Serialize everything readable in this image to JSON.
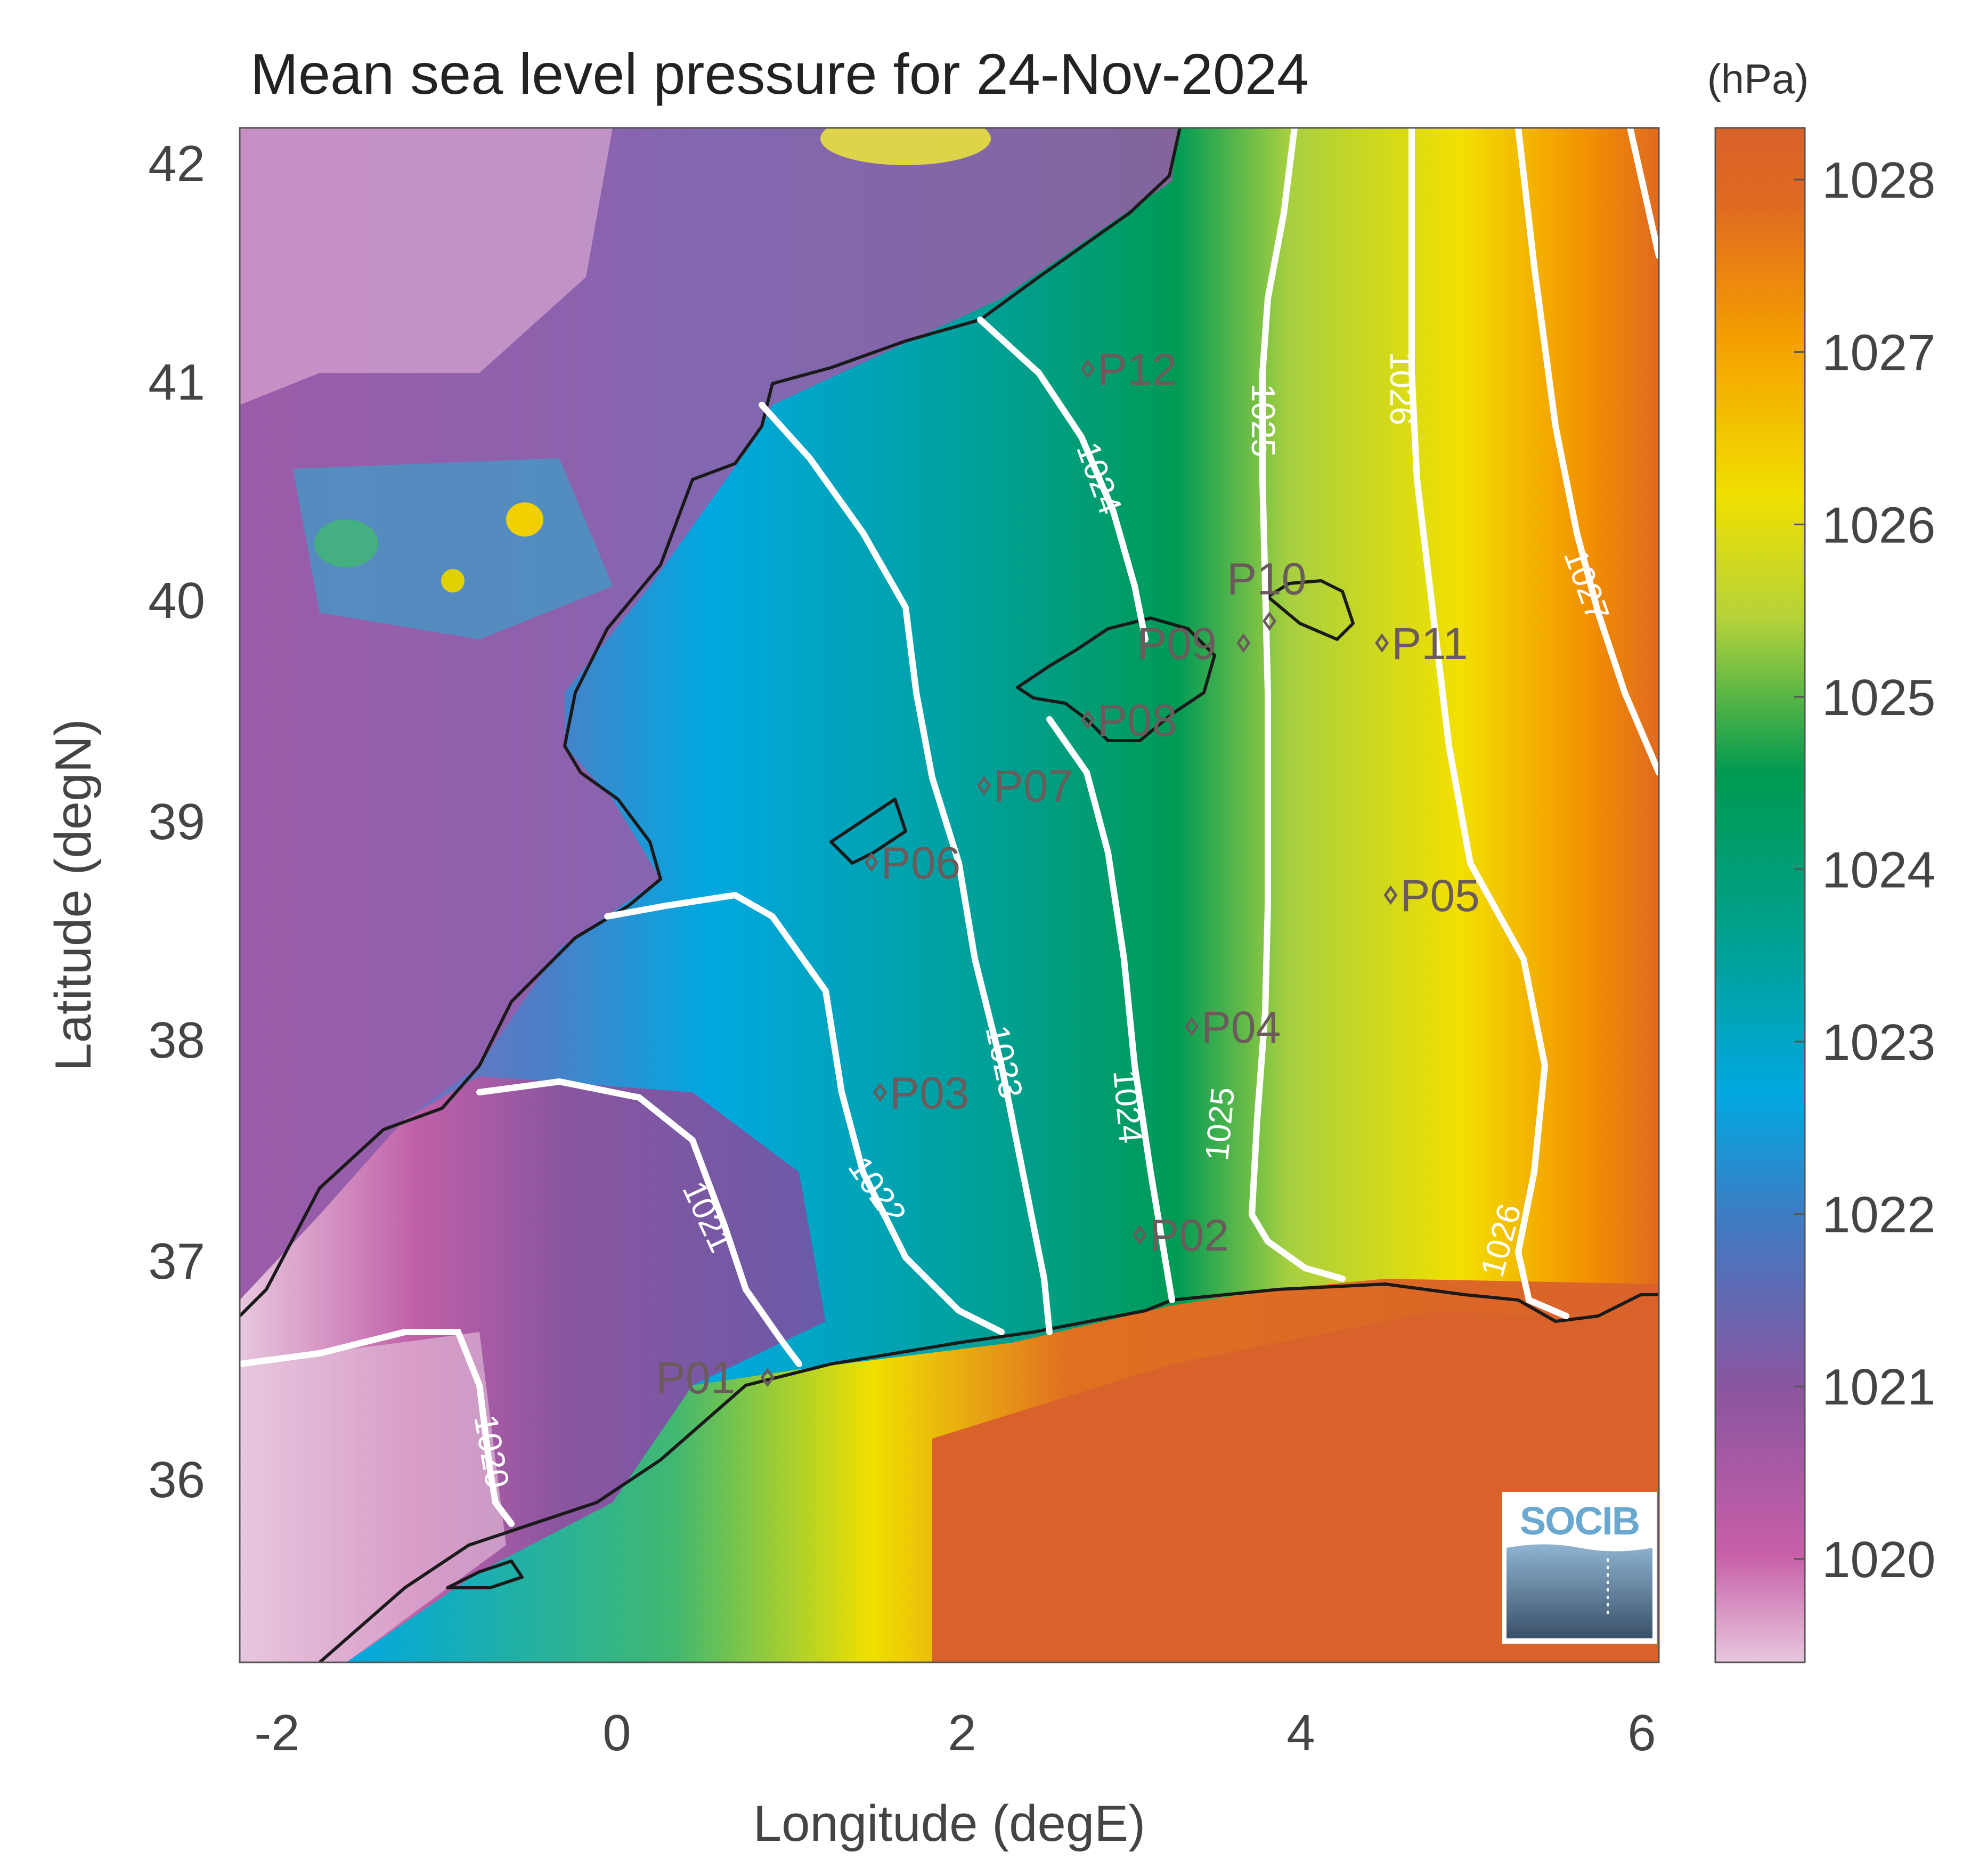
{
  "title": "Mean sea level pressure for 24-Nov-2024",
  "xlabel": "Longitude (degE)",
  "ylabel": "Latitude (degN)",
  "colorbar": {
    "unit": "(hPa)",
    "min": 1019.4,
    "max": 1028.3,
    "ticks": [
      "1020",
      "1021",
      "1022",
      "1023",
      "1024",
      "1025",
      "1026",
      "1027",
      "1028"
    ],
    "colors": [
      "#e8c7de",
      "#c85fa8",
      "#8a55a0",
      "#3e7cc4",
      "#00a8e0",
      "#00a08a",
      "#009a50",
      "#b5d23a",
      "#f0e000",
      "#f5a000",
      "#e06a20",
      "#d9622b"
    ]
  },
  "chart_data": {
    "type": "map",
    "xlim": [
      -2.2,
      6.0
    ],
    "ylim": [
      35.2,
      42.2
    ],
    "xticks": [
      "-2",
      "0",
      "2",
      "4",
      "6"
    ],
    "yticks": [
      "36",
      "37",
      "38",
      "39",
      "40",
      "41",
      "42"
    ],
    "points": [
      {
        "label": "P01",
        "lon": 0.85,
        "lat": 36.5
      },
      {
        "label": "P02",
        "lon": 3.0,
        "lat": 37.15
      },
      {
        "label": "P03",
        "lon": 1.5,
        "lat": 37.8
      },
      {
        "label": "P04",
        "lon": 3.3,
        "lat": 38.1
      },
      {
        "label": "P05",
        "lon": 4.45,
        "lat": 38.7
      },
      {
        "label": "P06",
        "lon": 1.45,
        "lat": 38.85
      },
      {
        "label": "P07",
        "lon": 2.1,
        "lat": 39.2
      },
      {
        "label": "P08",
        "lon": 2.7,
        "lat": 39.5
      },
      {
        "label": "P09",
        "lon": 3.6,
        "lat": 39.85
      },
      {
        "label": "P10",
        "lon": 3.75,
        "lat": 39.95
      },
      {
        "label": "P11",
        "lon": 4.4,
        "lat": 39.85
      },
      {
        "label": "P12",
        "lon": 2.7,
        "lat": 41.1
      }
    ],
    "contour_labels": [
      "1020",
      "1021",
      "1022",
      "1023",
      "1024",
      "1024",
      "1025",
      "1025",
      "1026",
      "1026",
      "1027"
    ],
    "grid": false
  },
  "logo_text": "SOCIB"
}
